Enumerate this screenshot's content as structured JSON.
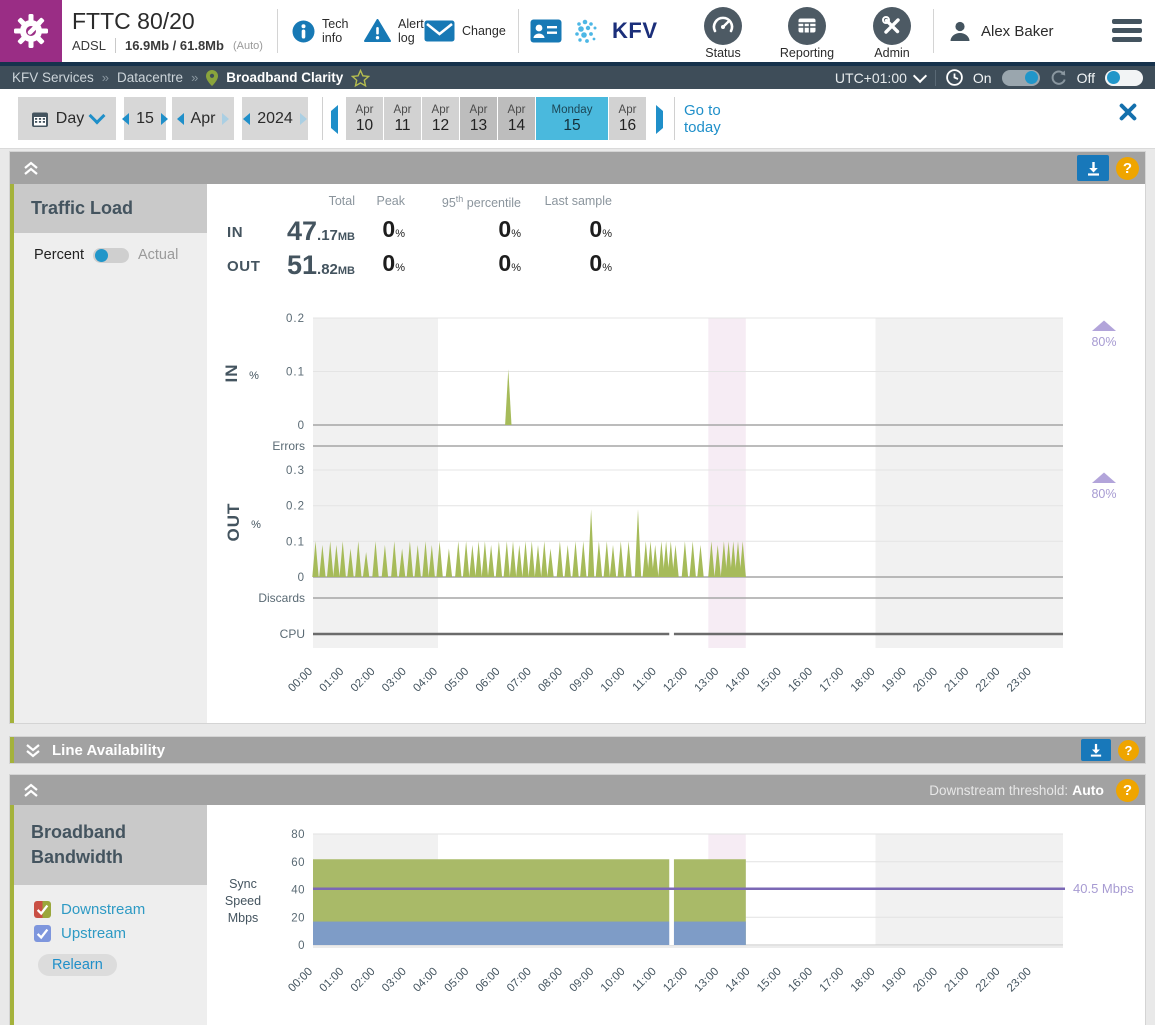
{
  "ui": {
    "help_glyph": "?",
    "crumb_sep": "»"
  },
  "colors": {
    "brand_purple": "#9a2d85",
    "icon_blue": "#1779b5",
    "link_blue": "#1f8fc9",
    "slate": "#44545f",
    "slate_circle": "#4d5a64",
    "slate_dark": "#3e4d59",
    "navy": "#16324c",
    "brand_navy": "#1b2f7a",
    "brand_dot_blue": "#4db7e5",
    "selected_day": "#4ab9dd",
    "panel_gray": "#a2a2a2",
    "olive": "#a4b23b",
    "chart_green": "#a6bb5a",
    "downstream_green": "#a9ba68",
    "upstream_blue": "#7e9cc7",
    "threshold_purple": "#7b68b5",
    "threshold_light": "#b2a4da",
    "threshold_text": "#a79bd2",
    "help_orange": "#efa500",
    "download_blue": "#1878ba",
    "band_gray": "#f1f1f1",
    "band_pink": "#f6ecf4",
    "toggle_blue": "#2196c9",
    "check_red": "#c94f44",
    "check_green": "#9aa73c",
    "check_blue": "#7e96dd"
  },
  "header": {
    "title": "FTTC 80/20",
    "line_type": "ADSL",
    "speeds": "16.9Mb / 61.8Mb",
    "speeds_mode": "(Auto)",
    "tech_info_1": "Tech",
    "tech_info_2": "info",
    "alert_log_1": "Alert",
    "alert_log_2": "log",
    "change_label": "Change",
    "brand": "KFV",
    "nav": [
      {
        "label": "Status"
      },
      {
        "label": "Reporting"
      },
      {
        "label": "Admin"
      }
    ],
    "user": "Alex Baker"
  },
  "breadcrumb": {
    "items": [
      "KFV Services",
      "Datacentre"
    ],
    "current": "Broadband Clarity",
    "timezone": "UTC+01:00",
    "clock_label": "On",
    "refresh_label": "Off"
  },
  "datebar": {
    "mode": "Day",
    "day": "15",
    "month": "Apr",
    "year": "2024",
    "days": [
      {
        "top": "Apr",
        "num": "10"
      },
      {
        "top": "Apr",
        "num": "11"
      },
      {
        "top": "Apr",
        "num": "12"
      },
      {
        "top": "Apr",
        "num": "13",
        "weekend": true
      },
      {
        "top": "Apr",
        "num": "14",
        "weekend": true
      },
      {
        "top": "Monday",
        "num": "15",
        "selected": true
      },
      {
        "top": "Apr",
        "num": "16"
      }
    ],
    "goto": "Go to today"
  },
  "traffic": {
    "title": "Traffic Load",
    "toggle_left": "Percent",
    "toggle_right": "Actual",
    "stats": {
      "h_total": "Total",
      "h_peak": "Peak",
      "h95_base": "95",
      "h95_sup": "th",
      "h95_rest": " percentile",
      "h_last": "Last sample",
      "pct_unit": "%",
      "rows": [
        {
          "label": "IN",
          "total_int": "47",
          "total_frac": ".17",
          "total_unit": "MB",
          "peak": "0",
          "pct95": "0",
          "last": "0"
        },
        {
          "label": "OUT",
          "total_int": "51",
          "total_frac": ".82",
          "total_unit": "MB",
          "peak": "0",
          "pct95": "0",
          "last": "0"
        }
      ]
    }
  },
  "line_availability": {
    "title": "Line Availability"
  },
  "bandwidth": {
    "title_line1": "Broadband",
    "title_line2": "Bandwidth",
    "threshold_label": "Downstream threshold:",
    "threshold_value": "Auto",
    "checkboxes": [
      {
        "label": "Downstream"
      },
      {
        "label": "Upstream"
      }
    ],
    "relearn": "Relearn"
  },
  "chart_data": [
    {
      "id": "traffic-load",
      "type": "area",
      "title": "Traffic Load (percent utilisation)",
      "x_unit": "time of day",
      "xlim_hours": [
        0,
        24
      ],
      "x_ticks": [
        "00:00",
        "01:00",
        "02:00",
        "03:00",
        "04:00",
        "05:00",
        "06:00",
        "07:00",
        "08:00",
        "09:00",
        "10:00",
        "11:00",
        "12:00",
        "13:00",
        "14:00",
        "15:00",
        "16:00",
        "17:00",
        "18:00",
        "19:00",
        "20:00",
        "21:00",
        "22:00",
        "23:00"
      ],
      "bands": [
        {
          "from": 0,
          "to": 4,
          "style": "gray"
        },
        {
          "from": 12.65,
          "to": 13.85,
          "style": "pink"
        },
        {
          "from": 18,
          "to": 24,
          "style": "gray"
        }
      ],
      "data_end_hour": 13.85,
      "rows": [
        {
          "name": "IN",
          "unit": "%",
          "yticks": [
            0,
            0.1,
            0.2
          ],
          "ymax": 0.25,
          "threshold_label": "80%",
          "spikes": [
            [
              6.25,
              0.104
            ]
          ]
        },
        {
          "name": "Errors",
          "spikes": []
        },
        {
          "name": "OUT",
          "unit": "%",
          "yticks": [
            0,
            0.1,
            0.2,
            0.3
          ],
          "ymax": 0.35,
          "threshold_label": "80%",
          "spikes": [
            [
              0.08,
              0.1
            ],
            [
              0.3,
              0.09
            ],
            [
              0.55,
              0.1
            ],
            [
              0.75,
              0.09
            ],
            [
              0.95,
              0.1
            ],
            [
              1.2,
              0.08
            ],
            [
              1.45,
              0.1
            ],
            [
              1.7,
              0.07
            ],
            [
              2.0,
              0.1
            ],
            [
              2.3,
              0.09
            ],
            [
              2.6,
              0.1
            ],
            [
              2.85,
              0.08
            ],
            [
              3.1,
              0.1
            ],
            [
              3.35,
              0.09
            ],
            [
              3.6,
              0.1
            ],
            [
              3.8,
              0.09
            ],
            [
              4.05,
              0.1
            ],
            [
              4.35,
              0.08
            ],
            [
              4.65,
              0.1
            ],
            [
              4.9,
              0.1
            ],
            [
              5.1,
              0.09
            ],
            [
              5.3,
              0.1
            ],
            [
              5.5,
              0.1
            ],
            [
              5.7,
              0.09
            ],
            [
              5.95,
              0.1
            ],
            [
              6.2,
              0.1
            ],
            [
              6.4,
              0.1
            ],
            [
              6.6,
              0.09
            ],
            [
              6.8,
              0.1
            ],
            [
              7.0,
              0.1
            ],
            [
              7.2,
              0.09
            ],
            [
              7.4,
              0.1
            ],
            [
              7.6,
              0.08
            ],
            [
              7.9,
              0.1
            ],
            [
              8.15,
              0.09
            ],
            [
              8.4,
              0.1
            ],
            [
              8.65,
              0.1
            ],
            [
              8.9,
              0.19
            ],
            [
              9.15,
              0.1
            ],
            [
              9.4,
              0.1
            ],
            [
              9.6,
              0.09
            ],
            [
              9.85,
              0.1
            ],
            [
              10.1,
              0.1
            ],
            [
              10.4,
              0.19
            ],
            [
              10.65,
              0.1
            ],
            [
              10.8,
              0.1
            ],
            [
              10.95,
              0.09
            ],
            [
              11.15,
              0.1
            ],
            [
              11.3,
              0.1
            ],
            [
              11.45,
              0.1
            ],
            [
              11.6,
              0.09
            ],
            [
              11.9,
              0.1
            ],
            [
              12.15,
              0.1
            ],
            [
              12.4,
              0.09
            ],
            [
              12.75,
              0.1
            ],
            [
              12.95,
              0.09
            ],
            [
              13.15,
              0.1
            ],
            [
              13.3,
              0.1
            ],
            [
              13.45,
              0.1
            ],
            [
              13.6,
              0.1
            ],
            [
              13.75,
              0.1
            ]
          ]
        },
        {
          "name": "Discards",
          "spikes": []
        },
        {
          "name": "CPU",
          "gap_hours": [
            11.4,
            11.55
          ]
        }
      ]
    },
    {
      "id": "broadband-bandwidth",
      "type": "area",
      "title": "Broadband Bandwidth",
      "ylabel_lines": [
        "Sync",
        "Speed",
        "Mbps"
      ],
      "yticks": [
        0,
        20,
        40,
        60,
        80
      ],
      "ylim": [
        0,
        80
      ],
      "x_ticks": [
        "00:00",
        "01:00",
        "02:00",
        "03:00",
        "04:00",
        "05:00",
        "06:00",
        "07:00",
        "08:00",
        "09:00",
        "10:00",
        "11:00",
        "12:00",
        "13:00",
        "14:00",
        "15:00",
        "16:00",
        "17:00",
        "18:00",
        "19:00",
        "20:00",
        "21:00",
        "22:00",
        "23:00"
      ],
      "bands": [
        {
          "from": 0,
          "to": 4,
          "style": "gray"
        },
        {
          "from": 12.65,
          "to": 13.85,
          "style": "pink"
        },
        {
          "from": 18,
          "to": 24,
          "style": "gray"
        }
      ],
      "series": [
        {
          "name": "Downstream",
          "sync_mbps": 61.8,
          "from": 0,
          "to": 13.85
        },
        {
          "name": "Upstream",
          "sync_mbps": 16.9,
          "from": 0,
          "to": 13.85
        }
      ],
      "data_gap_hours": [
        11.4,
        11.55
      ],
      "threshold": {
        "value_mbps": 40.5,
        "label": "40.5 Mbps"
      }
    }
  ]
}
